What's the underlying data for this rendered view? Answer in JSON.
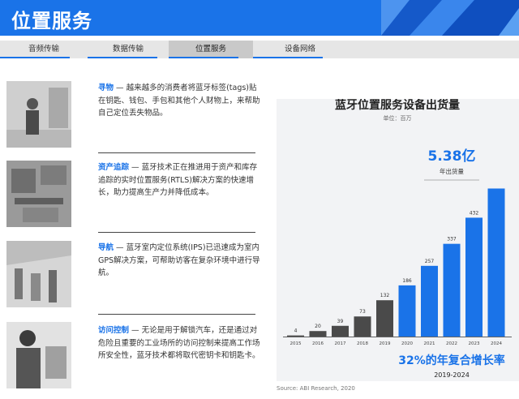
{
  "header": {
    "title": "位置服务"
  },
  "tabs": [
    {
      "label": "音频传输"
    },
    {
      "label": "数据传输"
    },
    {
      "label": "位置服务",
      "active": true
    },
    {
      "label": "设备网络"
    }
  ],
  "features": [
    {
      "title": "寻物",
      "sep": " — ",
      "text": "越来越多的消费者将蓝牙标签(tags)贴在钥匙、钱包、手包和其他个人财物上，来帮助自己定位丢失物品。"
    },
    {
      "title": "资产追踪",
      "sep": " — ",
      "text": "蓝牙技术正在推进用于资产和库存追踪的实时位置服务(RTLS)解决方案的快速增长，助力提高生产力并降低成本。"
    },
    {
      "title": "导航",
      "sep": " — ",
      "text": "蓝牙室内定位系统(IPS)已迅速成为室内GPS解决方案，可帮助访客在复杂环境中进行导航。"
    },
    {
      "title": "访问控制",
      "sep": " — ",
      "text": "无论是用于解锁汽车，还是通过对危险且重要的工业场所的访问控制来提高工作场所安全性，蓝牙技术都将取代密钥卡和钥匙卡。"
    }
  ],
  "chart_data": {
    "type": "bar",
    "title": "蓝牙位置服务设备出货量",
    "subtitle": "单位：百万",
    "categories": [
      "2015",
      "2016",
      "2017",
      "2018",
      "2019",
      "2020",
      "2021",
      "2022",
      "2023",
      "2024"
    ],
    "values": [
      4,
      20,
      39,
      73,
      132,
      186,
      257,
      337,
      432,
      538
    ],
    "data_labels": [
      "4",
      "20",
      "39",
      "73",
      "132",
      "186",
      "257",
      "337",
      "432",
      ""
    ],
    "forecast_from": "2020",
    "highlight": {
      "value": "5.38亿",
      "label": "年出货量"
    },
    "cagr": {
      "value": "32%的年复合增长率",
      "period": "2019-2024"
    },
    "colors": {
      "historical": "#4a4a4a",
      "forecast": "#1a73e8"
    },
    "ylim": [
      0,
      560
    ],
    "grid": false
  },
  "source": "Source: ABI Research, 2020",
  "colors": {
    "brand": "#1a73e8",
    "tabbar": "#e6e6e6"
  }
}
